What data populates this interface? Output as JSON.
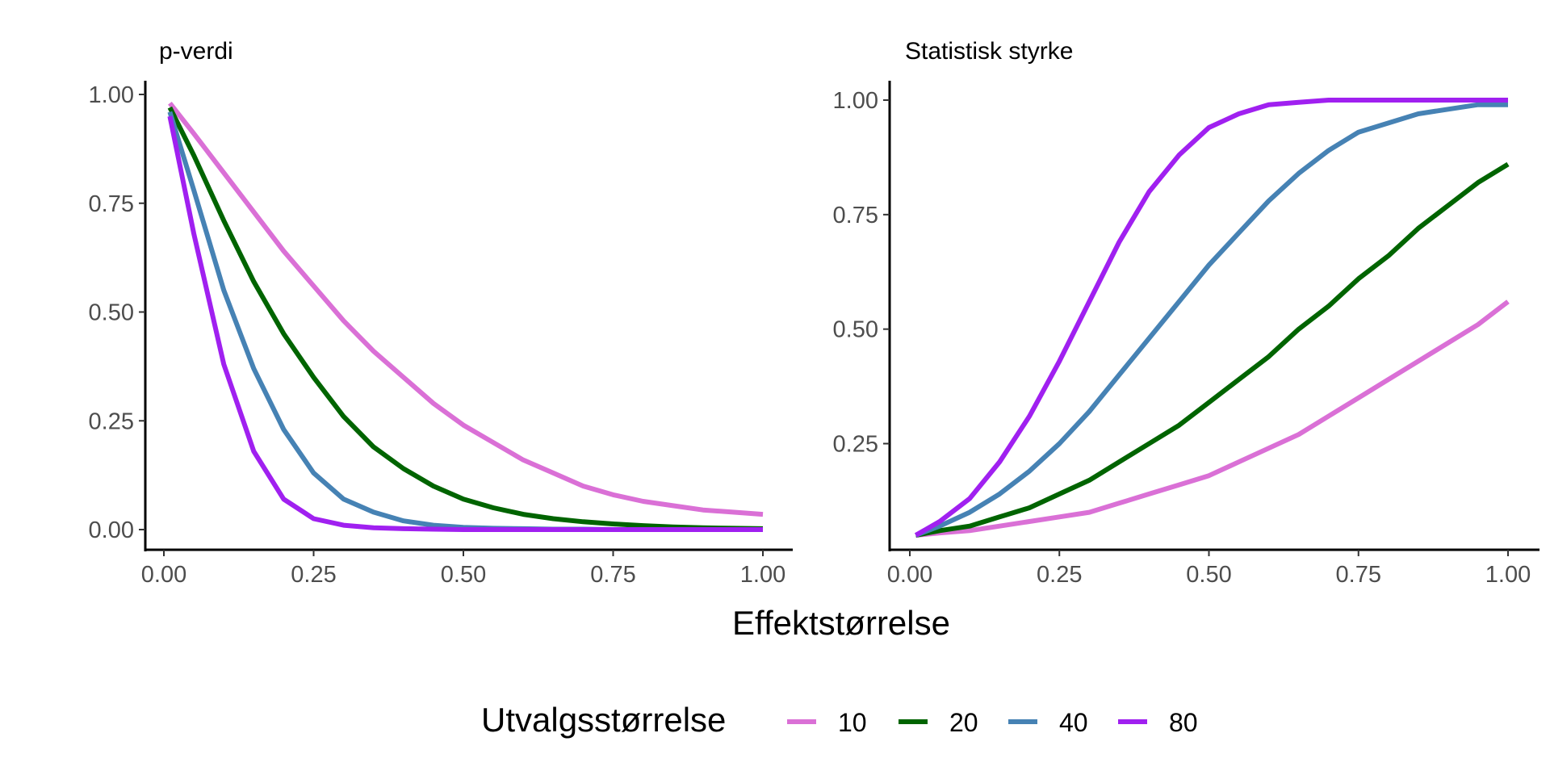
{
  "chart_data": {
    "type": "line",
    "xlabel": "Effektstørrelse",
    "legend": {
      "title": "Utvalgsstørrelse",
      "position": "bottom",
      "entries": [
        "10",
        "20",
        "40",
        "80"
      ]
    },
    "series_colors": {
      "10": "#da70d6",
      "20": "#006400",
      "40": "#4682b4",
      "80": "#a020f0"
    },
    "panels": [
      {
        "id": "p",
        "title": "p-verdi",
        "xlim": [
          0,
          1
        ],
        "ylim": [
          0,
          1
        ],
        "xticks": [
          "0.00",
          "0.25",
          "0.50",
          "0.75",
          "1.00"
        ],
        "yticks": [
          "0.00",
          "0.25",
          "0.50",
          "0.75",
          "1.00"
        ],
        "x": [
          0.01,
          0.05,
          0.1,
          0.15,
          0.2,
          0.25,
          0.3,
          0.35,
          0.4,
          0.45,
          0.5,
          0.55,
          0.6,
          0.65,
          0.7,
          0.75,
          0.8,
          0.85,
          0.9,
          0.95,
          1.0
        ],
        "series": [
          {
            "name": "10",
            "values": [
              0.98,
              0.91,
              0.82,
              0.73,
              0.64,
              0.56,
              0.48,
              0.41,
              0.35,
              0.29,
              0.24,
              0.2,
              0.16,
              0.13,
              0.1,
              0.08,
              0.065,
              0.055,
              0.045,
              0.04,
              0.035
            ]
          },
          {
            "name": "20",
            "values": [
              0.97,
              0.86,
              0.71,
              0.57,
              0.45,
              0.35,
              0.26,
              0.19,
              0.14,
              0.1,
              0.07,
              0.05,
              0.035,
              0.025,
              0.018,
              0.013,
              0.009,
              0.006,
              0.004,
              0.003,
              0.002
            ]
          },
          {
            "name": "40",
            "values": [
              0.96,
              0.78,
              0.55,
              0.37,
              0.23,
              0.13,
              0.07,
              0.04,
              0.02,
              0.01,
              0.005,
              0.003,
              0.002,
              0.001,
              0.001,
              0.0,
              0.0,
              0.0,
              0.0,
              0.0,
              0.0
            ]
          },
          {
            "name": "80",
            "values": [
              0.95,
              0.68,
              0.38,
              0.18,
              0.07,
              0.025,
              0.01,
              0.004,
              0.002,
              0.001,
              0.0,
              0.0,
              0.0,
              0.0,
              0.0,
              0.0,
              0.0,
              0.0,
              0.0,
              0.0,
              0.0
            ]
          }
        ]
      },
      {
        "id": "power",
        "title": "Statistisk styrke",
        "xlim": [
          0,
          1
        ],
        "ylim": [
          0.05,
          1
        ],
        "xticks": [
          "0.00",
          "0.25",
          "0.50",
          "0.75",
          "1.00"
        ],
        "yticks": [
          "0.25",
          "0.50",
          "0.75",
          "1.00"
        ],
        "x": [
          0.01,
          0.05,
          0.1,
          0.15,
          0.2,
          0.25,
          0.3,
          0.35,
          0.4,
          0.45,
          0.5,
          0.55,
          0.6,
          0.65,
          0.7,
          0.75,
          0.8,
          0.85,
          0.9,
          0.95,
          1.0
        ],
        "series": [
          {
            "name": "10",
            "values": [
              0.05,
              0.055,
              0.06,
              0.07,
              0.08,
              0.09,
              0.1,
              0.12,
              0.14,
              0.16,
              0.18,
              0.21,
              0.24,
              0.27,
              0.31,
              0.35,
              0.39,
              0.43,
              0.47,
              0.51,
              0.56
            ]
          },
          {
            "name": "20",
            "values": [
              0.05,
              0.06,
              0.07,
              0.09,
              0.11,
              0.14,
              0.17,
              0.21,
              0.25,
              0.29,
              0.34,
              0.39,
              0.44,
              0.5,
              0.55,
              0.61,
              0.66,
              0.72,
              0.77,
              0.82,
              0.86
            ]
          },
          {
            "name": "40",
            "values": [
              0.05,
              0.07,
              0.1,
              0.14,
              0.19,
              0.25,
              0.32,
              0.4,
              0.48,
              0.56,
              0.64,
              0.71,
              0.78,
              0.84,
              0.89,
              0.93,
              0.95,
              0.97,
              0.98,
              0.99,
              0.99
            ]
          },
          {
            "name": "80",
            "values": [
              0.05,
              0.08,
              0.13,
              0.21,
              0.31,
              0.43,
              0.56,
              0.69,
              0.8,
              0.88,
              0.94,
              0.97,
              0.99,
              0.995,
              1.0,
              1.0,
              1.0,
              1.0,
              1.0,
              1.0,
              1.0
            ]
          }
        ]
      }
    ]
  }
}
